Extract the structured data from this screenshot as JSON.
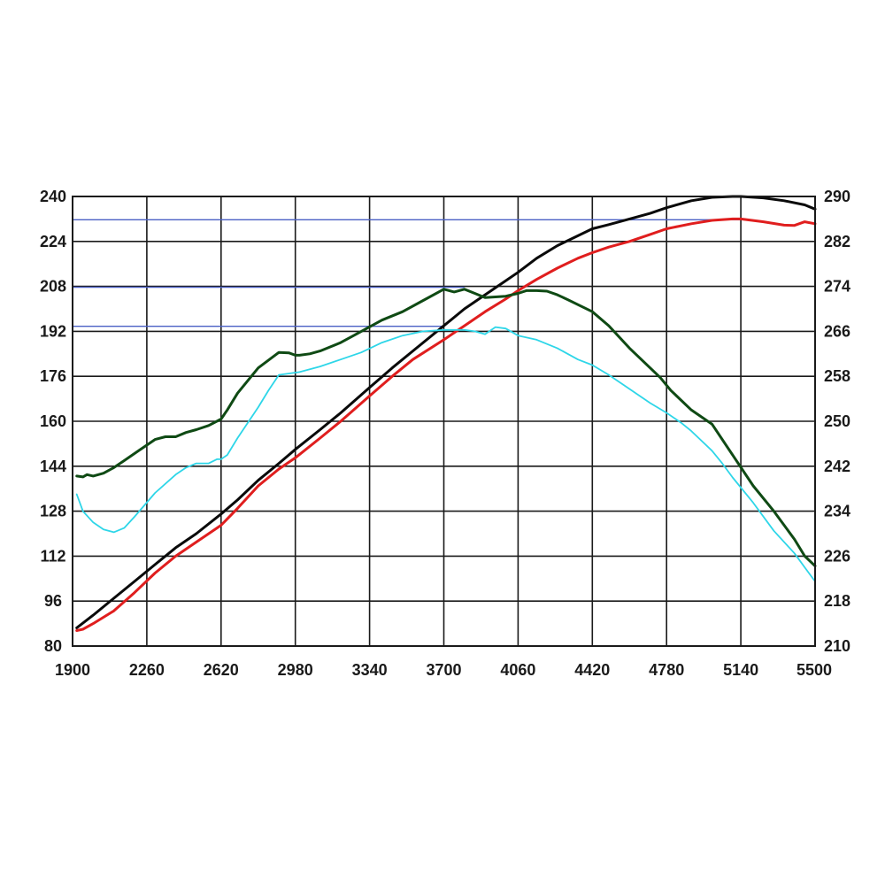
{
  "chart_data": {
    "type": "line",
    "title": "",
    "xlabel": "",
    "ylabel": "",
    "y2label": "",
    "grid": true,
    "legend": "none",
    "xlim": [
      1900,
      5500
    ],
    "ylim": [
      80,
      240
    ],
    "y2lim": [
      210,
      290
    ],
    "x_ticks": [
      1900,
      2260,
      2620,
      2980,
      3340,
      3700,
      4060,
      4420,
      4780,
      5140,
      5500
    ],
    "y_ticks": [
      80,
      96,
      112,
      128,
      144,
      160,
      176,
      192,
      208,
      224,
      240
    ],
    "y2_ticks": [
      210,
      218,
      226,
      234,
      242,
      250,
      258,
      266,
      274,
      282,
      290
    ],
    "reference_lines": [
      {
        "y": 231.7,
        "x_end": 5140,
        "color": "#4a5fc4"
      },
      {
        "y": 207.7,
        "x_end": 3800,
        "color": "#4a5fc4"
      },
      {
        "y": 193.8,
        "x_end": 3700,
        "color": "#4a5fc4"
      }
    ],
    "series": [
      {
        "color": "#0a0a0a",
        "axis": "left",
        "x": [
          1920,
          2000,
          2100,
          2200,
          2300,
          2400,
          2500,
          2620,
          2700,
          2800,
          2900,
          2980,
          3100,
          3200,
          3340,
          3450,
          3550,
          3700,
          3800,
          3900,
          4000,
          4060,
          4150,
          4250,
          4350,
          4420,
          4500,
          4600,
          4700,
          4780,
          4900,
          5000,
          5100,
          5140,
          5250,
          5350,
          5450,
          5500
        ],
        "y": [
          86.5,
          91,
          97,
          103,
          109,
          115,
          120,
          127,
          132,
          139,
          145,
          150,
          157,
          163,
          172,
          179,
          185,
          194,
          200,
          205,
          210,
          213,
          218,
          222.5,
          226,
          228.5,
          230,
          232,
          234,
          236,
          238.5,
          239.7,
          240,
          240,
          239.5,
          238.5,
          237,
          235.5
        ]
      },
      {
        "color": "#e01e1e",
        "axis": "left",
        "x": [
          1920,
          1950,
          2000,
          2100,
          2200,
          2300,
          2400,
          2500,
          2620,
          2700,
          2800,
          2900,
          2980,
          3100,
          3200,
          3340,
          3450,
          3550,
          3700,
          3800,
          3900,
          4000,
          4060,
          4150,
          4250,
          4350,
          4420,
          4500,
          4600,
          4700,
          4780,
          4900,
          5000,
          5100,
          5140,
          5250,
          5350,
          5400,
          5450,
          5500
        ],
        "y": [
          85.5,
          86,
          88,
          92.5,
          99,
          106,
          112,
          117,
          123,
          129,
          137,
          143,
          147,
          154,
          160,
          169,
          176,
          182,
          189,
          194,
          199,
          203.5,
          206.5,
          210.5,
          214.5,
          218,
          220,
          222,
          224,
          226.5,
          228.5,
          230.3,
          231.5,
          232,
          232,
          231,
          229.8,
          229.7,
          231,
          230.3
        ]
      },
      {
        "color": "#0f4a14",
        "axis": "left",
        "x": [
          1920,
          1950,
          1970,
          2000,
          2050,
          2100,
          2150,
          2200,
          2220,
          2300,
          2350,
          2400,
          2450,
          2500,
          2560,
          2620,
          2650,
          2700,
          2800,
          2900,
          2950,
          2980,
          3000,
          3050,
          3100,
          3200,
          3300,
          3400,
          3500,
          3600,
          3700,
          3750,
          3800,
          3850,
          3900,
          4000,
          4060,
          4100,
          4150,
          4200,
          4250,
          4300,
          4420,
          4500,
          4600,
          4700,
          4750,
          4800,
          4900,
          5000,
          5100,
          5200,
          5300,
          5400,
          5450,
          5500
        ],
        "y": [
          140.5,
          140.2,
          141,
          140.5,
          141.5,
          143.5,
          146,
          148.5,
          149.5,
          153.5,
          154.5,
          154.5,
          156,
          157,
          158.5,
          160.8,
          164,
          170,
          179,
          184.5,
          184.3,
          183.5,
          183.5,
          184,
          185,
          188,
          192,
          196,
          199,
          203,
          207,
          206,
          207,
          205.5,
          204,
          204.5,
          205.5,
          206.5,
          206.5,
          206.3,
          205,
          203.3,
          199,
          194,
          186,
          179,
          175.5,
          171,
          164,
          159,
          148,
          137,
          128,
          118,
          112,
          108.5
        ]
      },
      {
        "color": "#2ed6e8",
        "axis": "left",
        "x": [
          1920,
          1950,
          2000,
          2050,
          2100,
          2150,
          2200,
          2300,
          2400,
          2450,
          2500,
          2560,
          2600,
          2620,
          2650,
          2700,
          2800,
          2850,
          2900,
          3000,
          3100,
          3200,
          3300,
          3400,
          3500,
          3600,
          3700,
          3800,
          3850,
          3900,
          3950,
          4000,
          4060,
          4150,
          4250,
          4350,
          4420,
          4500,
          4600,
          4700,
          4780,
          4850,
          4900,
          5000,
          5050,
          5100,
          5200,
          5300,
          5400,
          5450,
          5500
        ],
        "y": [
          134,
          128,
          124,
          121.5,
          120.5,
          122,
          126,
          134.5,
          141,
          143.5,
          145,
          145,
          146.5,
          146.5,
          148,
          154,
          165,
          171,
          176.5,
          177.5,
          179.5,
          182,
          184.5,
          188,
          190.5,
          192,
          192.5,
          192.5,
          192,
          191,
          193.5,
          193,
          190.5,
          189,
          186,
          182,
          180,
          176.5,
          171.5,
          166.5,
          163,
          159.5,
          156.5,
          149.5,
          145,
          140,
          131,
          121,
          113,
          108,
          103
        ]
      }
    ]
  }
}
